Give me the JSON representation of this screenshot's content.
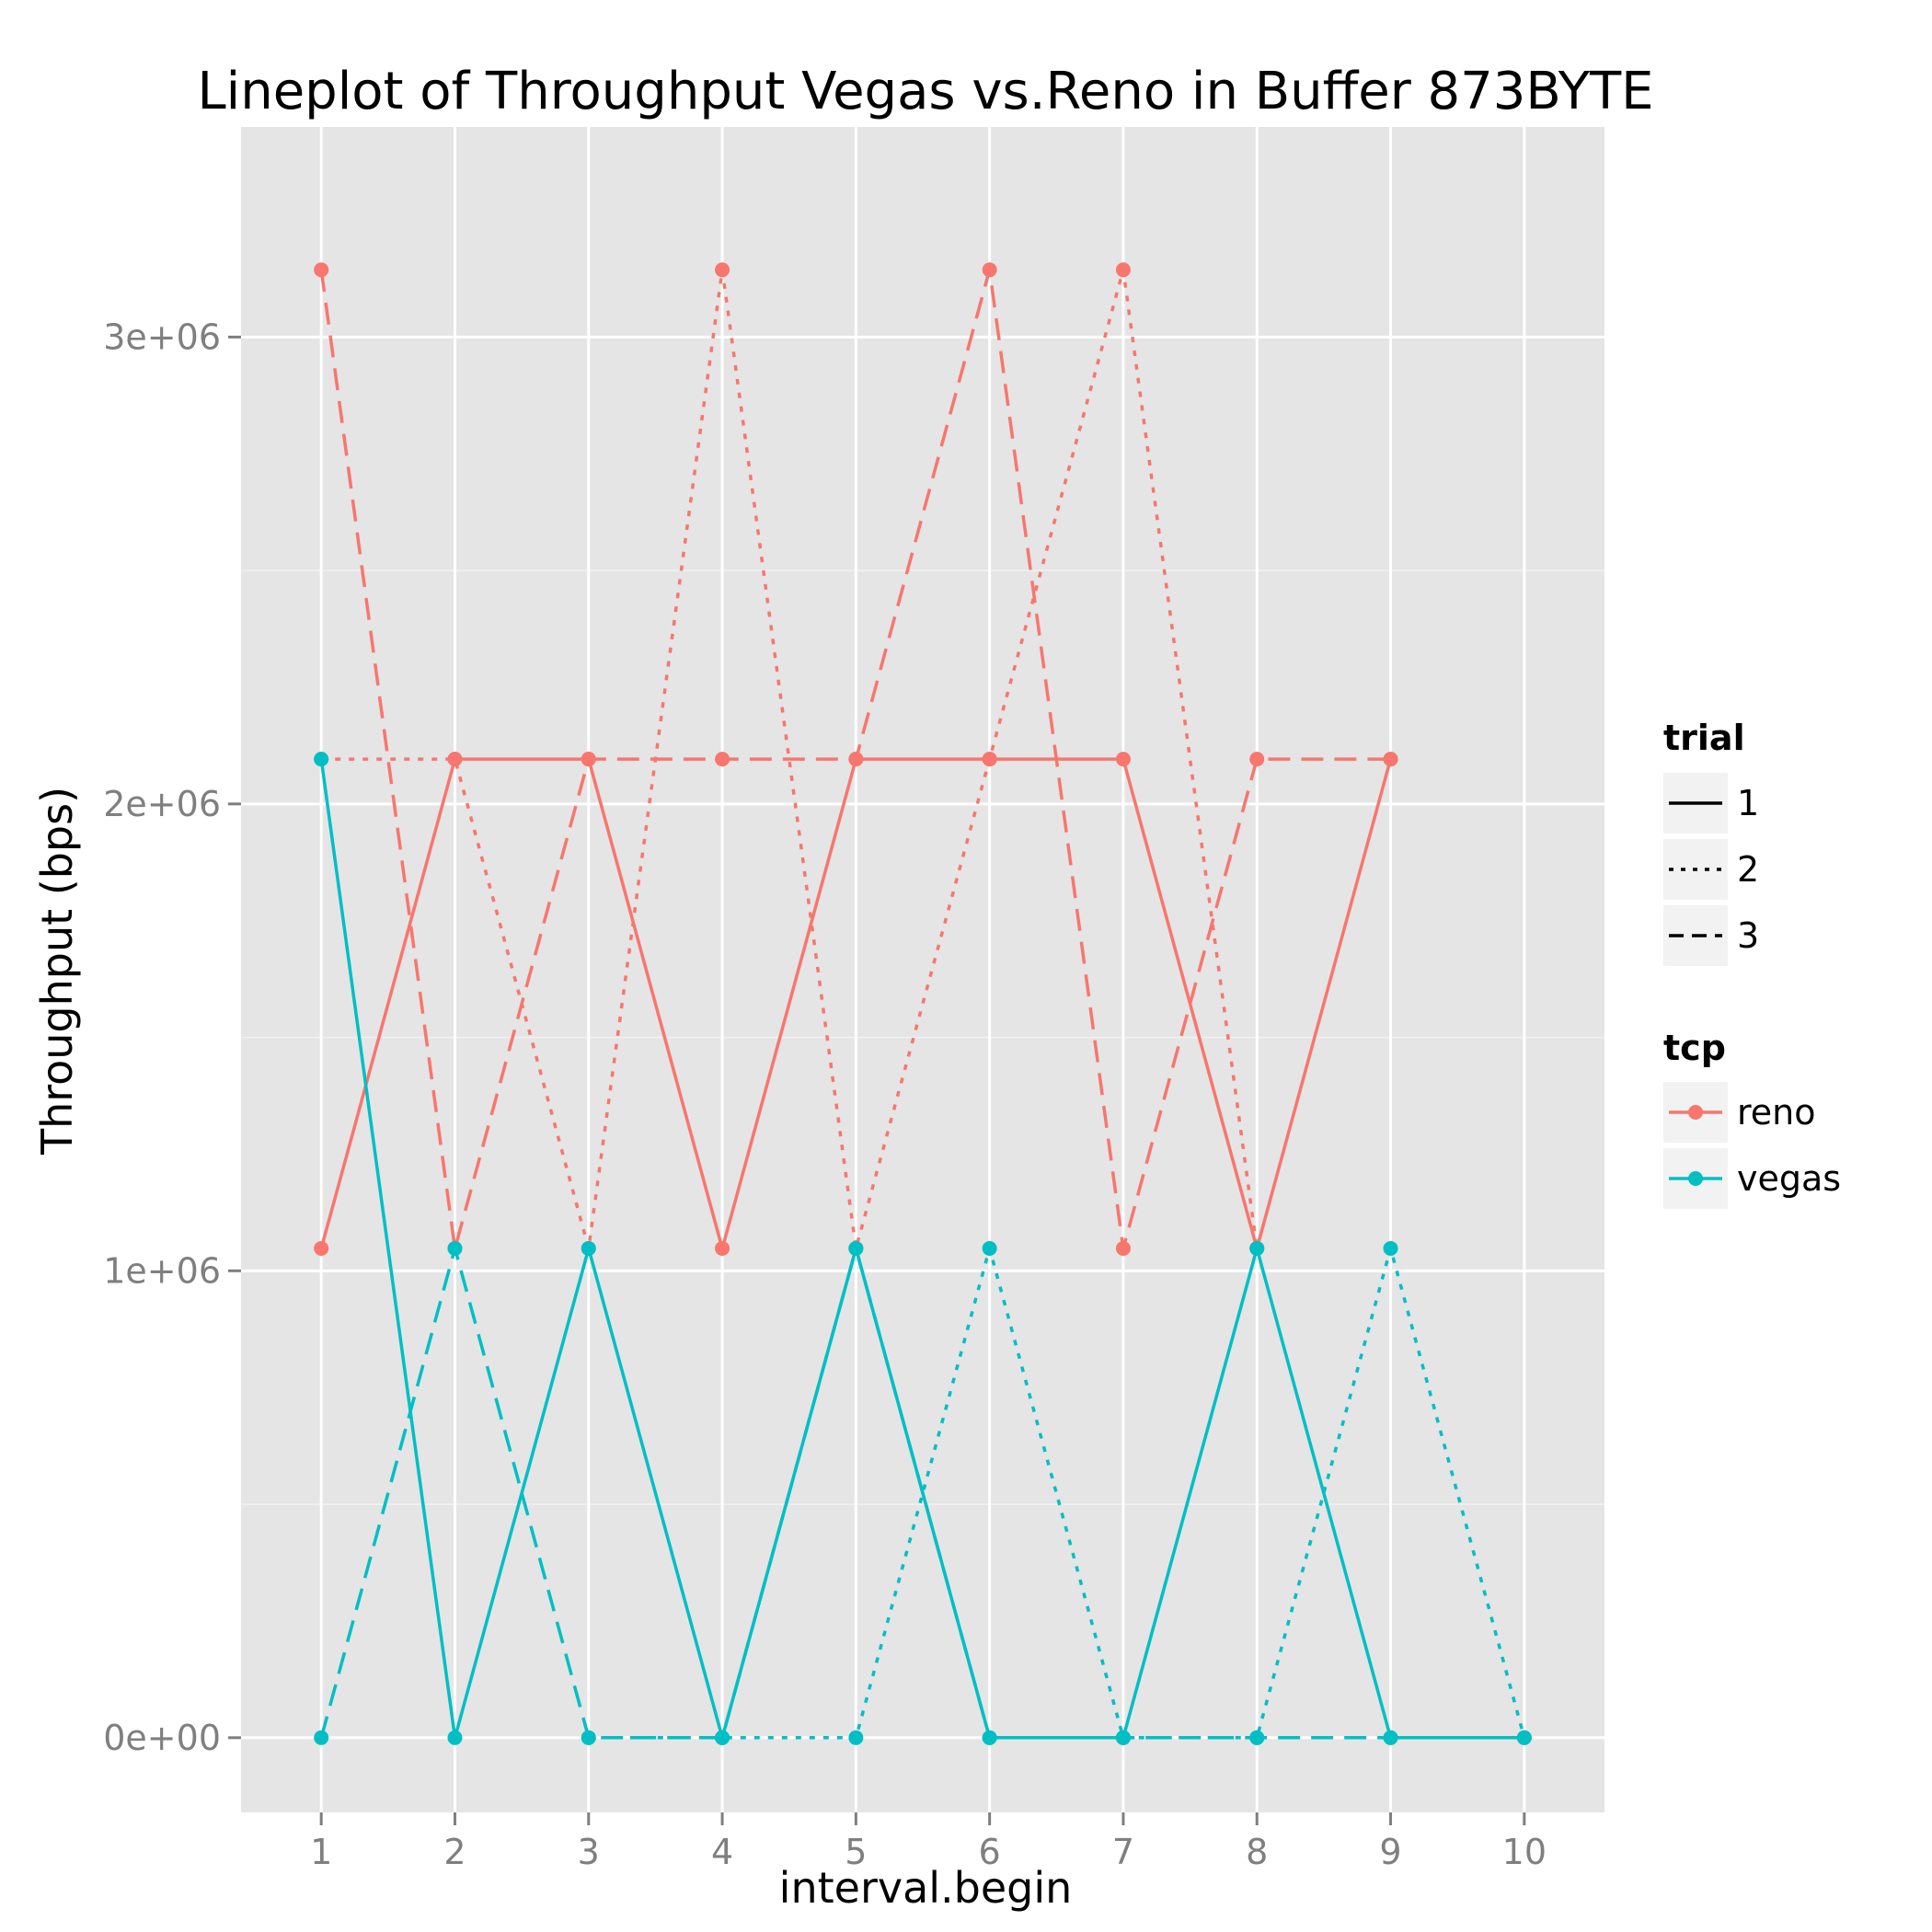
{
  "chart_data": {
    "type": "line",
    "title": "Lineplot of Throughput Vegas vs.Reno in Buffer 873BYTE",
    "xlabel": "interval.begin",
    "ylabel": "Throughput (bps)",
    "x_ticks": [
      1,
      2,
      3,
      4,
      5,
      6,
      7,
      8,
      9,
      10
    ],
    "x_tick_labels": [
      "1",
      "2",
      "3",
      "4",
      "5",
      "6",
      "7",
      "8",
      "9",
      "10"
    ],
    "y_ticks": [
      0,
      1000000,
      2000000,
      3000000
    ],
    "y_tick_labels": [
      "0e+00",
      "1e+06",
      "2e+06",
      "3e+06"
    ],
    "xlim": [
      0.4,
      10.6
    ],
    "ylim": [
      -160000,
      3450000
    ],
    "grid": true,
    "legend_position": "right",
    "colors": {
      "reno": "#f8766d",
      "vegas": "#00bfc4"
    },
    "legends": [
      {
        "title": "trial",
        "entries": [
          {
            "label": "1",
            "dash": "solid"
          },
          {
            "label": "2",
            "dash": "dotted"
          },
          {
            "label": "3",
            "dash": "dashed"
          }
        ]
      },
      {
        "title": "tcp",
        "entries": [
          {
            "label": "reno",
            "color": "#f8766d"
          },
          {
            "label": "vegas",
            "color": "#00bfc4"
          }
        ]
      }
    ],
    "series": [
      {
        "tcp": "reno",
        "trial": "1",
        "x": [
          1,
          2,
          3,
          4,
          5,
          6,
          7,
          8,
          9
        ],
        "values": [
          1048000,
          2096000,
          2096000,
          1048000,
          2096000,
          2096000,
          2096000,
          1048000,
          2096000
        ]
      },
      {
        "tcp": "reno",
        "trial": "2",
        "x": [
          1,
          2,
          3,
          4,
          5,
          6,
          7,
          8
        ],
        "values": [
          2096000,
          2096000,
          1048000,
          3144000,
          1048000,
          2096000,
          3144000,
          1048000
        ]
      },
      {
        "tcp": "reno",
        "trial": "3",
        "x": [
          1,
          2,
          3,
          4,
          5,
          6,
          7,
          8,
          9
        ],
        "values": [
          3144000,
          1048000,
          2096000,
          2096000,
          2096000,
          3144000,
          1048000,
          2096000,
          2096000
        ]
      },
      {
        "tcp": "vegas",
        "trial": "1",
        "x": [
          1,
          2,
          3,
          4,
          5,
          6,
          7,
          8,
          9,
          10
        ],
        "values": [
          2096000,
          0,
          1048000,
          0,
          1048000,
          0,
          0,
          1048000,
          0,
          0
        ]
      },
      {
        "tcp": "vegas",
        "trial": "2",
        "x": [
          3,
          4,
          5,
          6,
          7,
          8,
          9,
          10
        ],
        "values": [
          0,
          0,
          0,
          1048000,
          0,
          0,
          1048000,
          0
        ]
      },
      {
        "tcp": "vegas",
        "trial": "3",
        "x": [
          1,
          2,
          3,
          4,
          5,
          6,
          7,
          8,
          9
        ],
        "values": [
          0,
          1048000,
          0,
          0,
          1048000,
          0,
          0,
          0,
          0
        ]
      }
    ]
  }
}
